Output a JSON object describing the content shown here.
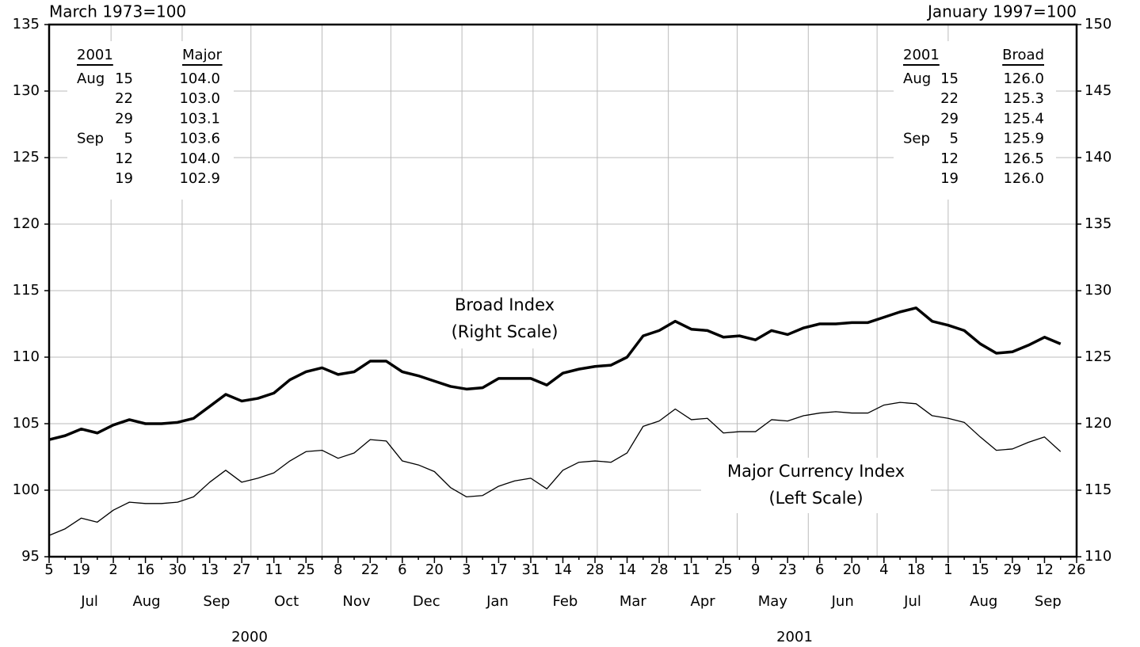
{
  "chart_data": {
    "type": "line",
    "annotations": {
      "left_base": "March 1973=100",
      "right_base": "January 1997=100",
      "broad_note": "(Right Scale)",
      "major_note": "(Left Scale)"
    },
    "categories": [
      "5",
      null,
      "19",
      null,
      "2",
      null,
      "16",
      null,
      "30",
      null,
      "13",
      null,
      "27",
      null,
      "11",
      null,
      "25",
      null,
      "8",
      null,
      "22",
      null,
      "6",
      null,
      "20",
      null,
      "3",
      null,
      "17",
      null,
      "31",
      null,
      "14",
      null,
      "28",
      null,
      "14",
      null,
      "28",
      null,
      "11",
      null,
      "25",
      null,
      "9",
      null,
      "23",
      null,
      "6",
      null,
      "20",
      null,
      "4",
      null,
      "18",
      null,
      "1",
      null,
      "15",
      null,
      "29",
      null,
      "12",
      null,
      "26"
    ],
    "months": [
      "Jul",
      "Aug",
      "Sep",
      "Oct",
      "Nov",
      "Dec",
      "Jan",
      "Feb",
      "Mar",
      "Apr",
      "May",
      "Jun",
      "Jul",
      "Aug",
      "Sep"
    ],
    "years": [
      "2000",
      "2001"
    ],
    "series": [
      {
        "name": "Major Currency Index",
        "axis": "y",
        "color": "#000000",
        "values": [
          96.6,
          97.1,
          97.9,
          97.6,
          98.5,
          99.1,
          99.0,
          99.0,
          99.1,
          99.5,
          100.6,
          101.5,
          100.6,
          100.9,
          101.3,
          102.2,
          102.9,
          103.0,
          102.4,
          102.8,
          103.8,
          103.7,
          102.2,
          101.9,
          101.4,
          100.2,
          99.5,
          99.6,
          100.3,
          100.7,
          100.9,
          100.1,
          101.5,
          102.1,
          102.2,
          102.1,
          102.8,
          104.8,
          105.2,
          106.1,
          105.3,
          105.4,
          104.3,
          104.4,
          104.4,
          105.3,
          105.2,
          105.6,
          105.8,
          105.9,
          105.8,
          105.8,
          106.4,
          106.6,
          106.5,
          105.6,
          105.4,
          105.1,
          104.0,
          103.0,
          103.1,
          103.6,
          104.0,
          102.9,
          null
        ]
      },
      {
        "name": "Broad Index",
        "axis": "y2",
        "color": "#000000",
        "values": [
          118.8,
          119.1,
          119.6,
          119.3,
          119.9,
          120.3,
          120.0,
          120.0,
          120.1,
          120.4,
          121.3,
          122.2,
          121.7,
          121.9,
          122.3,
          123.3,
          123.9,
          124.2,
          123.7,
          123.9,
          124.7,
          124.7,
          123.9,
          123.6,
          123.2,
          122.8,
          122.6,
          122.7,
          123.4,
          123.4,
          123.4,
          122.9,
          123.8,
          124.1,
          124.3,
          124.4,
          125.0,
          126.6,
          127.0,
          127.7,
          127.1,
          127.0,
          126.5,
          126.6,
          126.3,
          127.0,
          126.7,
          127.2,
          127.5,
          127.5,
          127.6,
          127.6,
          128.0,
          128.4,
          128.7,
          127.7,
          127.4,
          127.0,
          126.0,
          125.3,
          125.4,
          125.9,
          126.5,
          126.0,
          null
        ]
      }
    ],
    "ylim": [
      95,
      135
    ],
    "yticks": [
      95,
      100,
      105,
      110,
      115,
      120,
      125,
      130,
      135
    ],
    "y2lim": [
      110,
      150
    ],
    "y2ticks": [
      110,
      115,
      120,
      125,
      130,
      135,
      140,
      145,
      150
    ],
    "grid": true
  },
  "tables": [
    {
      "header": [
        "2001",
        "Major"
      ],
      "rows": [
        [
          "Aug",
          "15",
          "104.0"
        ],
        [
          null,
          "22",
          "103.0"
        ],
        [
          null,
          "29",
          "103.1"
        ],
        [
          "Sep",
          "5",
          "103.6"
        ],
        [
          null,
          "12",
          "104.0"
        ],
        [
          null,
          "19",
          "102.9"
        ]
      ]
    },
    {
      "header": [
        "2001",
        "Broad"
      ],
      "rows": [
        [
          "Aug",
          "15",
          "126.0"
        ],
        [
          null,
          "22",
          "125.3"
        ],
        [
          null,
          "29",
          "125.4"
        ],
        [
          "Sep",
          "5",
          "125.9"
        ],
        [
          null,
          "12",
          "126.5"
        ],
        [
          null,
          "19",
          "126.0"
        ]
      ]
    }
  ]
}
